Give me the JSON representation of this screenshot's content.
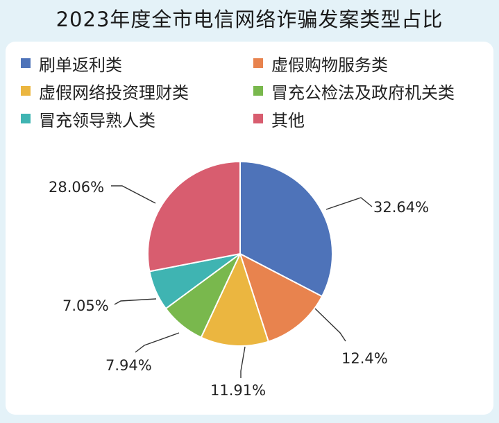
{
  "title": "2023年度全市电信网络诈骗发案类型占比",
  "chart_data": {
    "type": "pie",
    "categories": [
      "刷单返利类",
      "虚假购物服务类",
      "虚假网络投资理财类",
      "冒充公检法及政府机关类",
      "冒充领导熟人类",
      "其他"
    ],
    "values": [
      32.64,
      12.4,
      11.91,
      7.94,
      7.05,
      28.06
    ],
    "value_labels": [
      "32.64%",
      "12.4%",
      "11.91%",
      "7.94%",
      "7.05%",
      "28.06%"
    ],
    "colors": [
      "#4e73b9",
      "#e8834e",
      "#ebb640",
      "#79b84d",
      "#3fb4b2",
      "#d85d6f"
    ],
    "legend_placement": "top",
    "start_angle_deg": 0,
    "direction": "clockwise"
  }
}
